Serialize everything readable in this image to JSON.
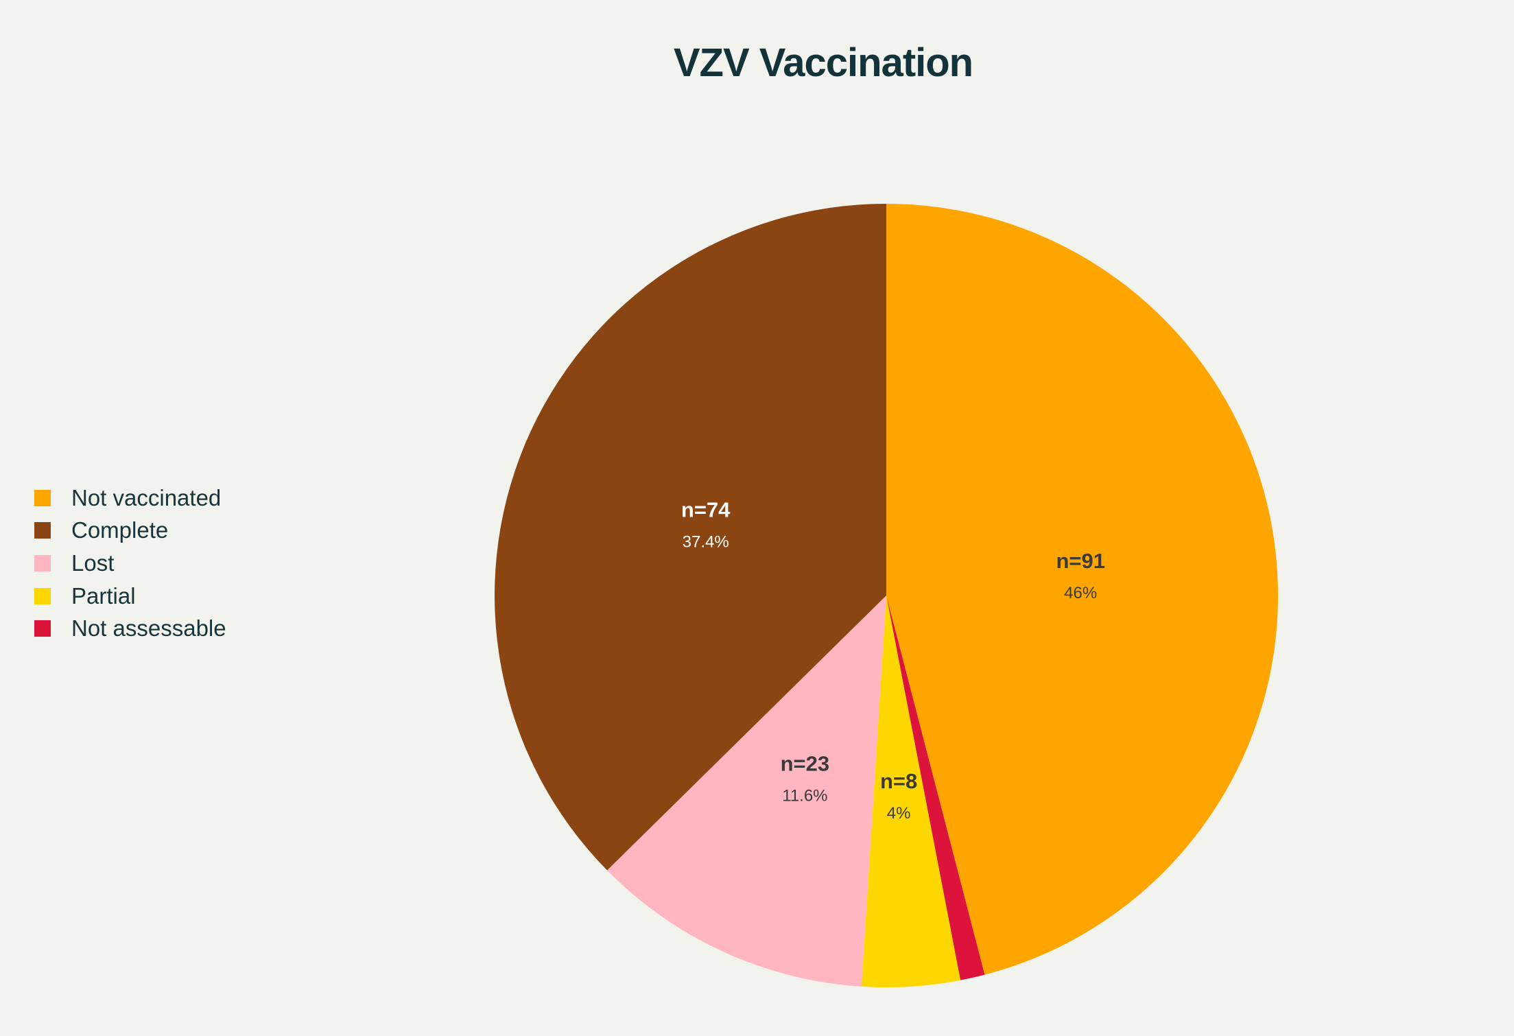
{
  "chart_data": {
    "type": "pie",
    "title": "VZV Vaccination",
    "legend_position": "left",
    "slices": [
      {
        "label": "Not vaccinated",
        "count_label": "n=91",
        "pct_label": "46%",
        "value": 91,
        "color": "#ffa500",
        "text_color": "#3a3a3a"
      },
      {
        "label": "Not assessable",
        "count_label": "",
        "pct_label": "",
        "value": 2,
        "color": "#dc143c",
        "text_color": "#ffffff"
      },
      {
        "label": "Partial",
        "count_label": "n=8",
        "pct_label": "4%",
        "value": 8,
        "color": "#ffd700",
        "text_color": "#3a3a3a"
      },
      {
        "label": "Lost",
        "count_label": "n=23",
        "pct_label": "11.6%",
        "value": 23,
        "color": "#ffb6c1",
        "text_color": "#3a3a3a"
      },
      {
        "label": "Complete",
        "count_label": "n=74",
        "pct_label": "37.4%",
        "value": 74,
        "color": "#8b4513",
        "text_color": "#ffffff"
      }
    ],
    "legend": [
      {
        "label": "Not vaccinated",
        "color": "#ffa500"
      },
      {
        "label": "Complete",
        "color": "#8b4513"
      },
      {
        "label": "Lost",
        "color": "#ffb6c1"
      },
      {
        "label": "Partial",
        "color": "#ffd700"
      },
      {
        "label": "Not assessable",
        "color": "#dc143c"
      }
    ]
  }
}
